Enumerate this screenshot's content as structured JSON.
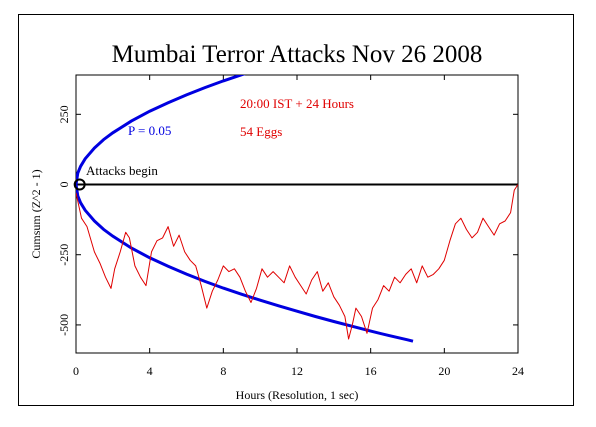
{
  "chart_data": {
    "type": "line",
    "title": "Mumbai Terror Attacks Nov 26 2008",
    "xlabel": "Hours (Resolution, 1 sec)",
    "ylabel": "Cumsum (Z^2 - 1)",
    "xlim": [
      0,
      24
    ],
    "ylim": [
      -600,
      390
    ],
    "x_ticks": [
      0,
      4,
      8,
      12,
      16,
      20,
      24
    ],
    "y_ticks": [
      -500,
      -250,
      0,
      250
    ],
    "annotations": {
      "event_label": "Attacks begin",
      "time_label": "20:00 IST + 24 Hours",
      "eggs_label": "54 Eggs",
      "p_label": "P = 0.05"
    },
    "series": [
      {
        "values_x": [
          0,
          0.3,
          0.6,
          1.0,
          1.3,
          1.6,
          1.9,
          2.1,
          2.4,
          2.7,
          2.9,
          3.2,
          3.5,
          3.8,
          4.1,
          4.4,
          4.7,
          5.0,
          5.3,
          5.6,
          5.9,
          6.2,
          6.5,
          6.8,
          7.1,
          7.4,
          7.7,
          8.0,
          8.3,
          8.6,
          8.9,
          9.2,
          9.5,
          9.8,
          10.1,
          10.4,
          10.7,
          11.0,
          11.3,
          11.6,
          11.9,
          12.2,
          12.5,
          12.8,
          13.1,
          13.4,
          13.7,
          14.0,
          14.3,
          14.6,
          14.8,
          15.0,
          15.2,
          15.5,
          15.8,
          16.1,
          16.4,
          16.7,
          17.0,
          17.3,
          17.6,
          17.9,
          18.2,
          18.5,
          18.8,
          19.1,
          19.4,
          19.7,
          20.0,
          20.3,
          20.6,
          20.9,
          21.2,
          21.5,
          21.8,
          22.1,
          22.4,
          22.7,
          23.0,
          23.3,
          23.6,
          23.8,
          24.0
        ],
        "values_y": [
          -30,
          -120,
          -150,
          -240,
          -280,
          -330,
          -370,
          -300,
          -240,
          -170,
          -190,
          -290,
          -330,
          -360,
          -240,
          -200,
          -190,
          -150,
          -220,
          -180,
          -240,
          -270,
          -290,
          -360,
          -440,
          -380,
          -340,
          -290,
          -310,
          -300,
          -330,
          -380,
          -420,
          -370,
          -300,
          -330,
          -310,
          -330,
          -350,
          -290,
          -330,
          -360,
          -390,
          -340,
          -310,
          -380,
          -350,
          -400,
          -430,
          -470,
          -550,
          -500,
          -440,
          -470,
          -530,
          -440,
          -410,
          -360,
          -380,
          -330,
          -350,
          -320,
          -300,
          -350,
          -290,
          -330,
          -320,
          -300,
          -270,
          -200,
          -140,
          -120,
          -160,
          -190,
          -170,
          -120,
          -150,
          -180,
          -140,
          -130,
          -100,
          -20,
          0
        ]
      },
      {
        "name": "P = 0.05",
        "values_x": [
          0,
          0.1,
          0.25,
          0.5,
          1,
          1.5,
          2,
          3,
          4,
          5,
          6,
          7,
          8,
          9,
          10,
          11,
          12,
          13,
          14,
          15,
          16,
          17,
          18,
          18.3
        ],
        "values_y": [
          0,
          41,
          65,
          92,
          130,
          160,
          184,
          226,
          261,
          291,
          319,
          345,
          369,
          391,
          412,
          432,
          451,
          470,
          488,
          505,
          522,
          538,
          553,
          558
        ],
        "mirror": true
      }
    ],
    "colors": {
      "data": "#e00000",
      "envelope": "#0000e0",
      "axis": "#000000"
    }
  }
}
